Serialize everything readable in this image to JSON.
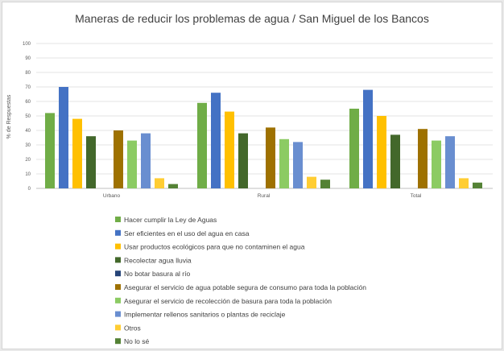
{
  "chart_data": {
    "type": "bar",
    "title": "Maneras de reducir los problemas de agua / San Miguel de los Bancos",
    "xlabel": "",
    "ylabel": "% de Respuestas",
    "ylim": [
      0,
      100
    ],
    "yticks": [
      0,
      10,
      20,
      30,
      40,
      50,
      60,
      70,
      80,
      90,
      100
    ],
    "grid": true,
    "legend_position": "bottom",
    "categories": [
      "Urbano",
      "Rural",
      "Total"
    ],
    "series": [
      {
        "name": "Hacer cumplir la Ley de Aguas",
        "color": "#70ad47",
        "values": [
          52,
          59,
          55
        ]
      },
      {
        "name": "Ser eficientes en el uso del agua en casa",
        "color": "#4472c4",
        "values": [
          70,
          66,
          68
        ]
      },
      {
        "name": "Usar productos ecológicos para que no contaminen el agua",
        "color": "#ffc000",
        "values": [
          48,
          53,
          50
        ]
      },
      {
        "name": "Recolectar agua lluvia",
        "color": "#43682b",
        "values": [
          36,
          38,
          37
        ]
      },
      {
        "name": "No botar basura al río",
        "color": "#264478",
        "values": [
          0,
          0,
          0
        ]
      },
      {
        "name": "Asegurar el servicio de agua potable segura de consumo para toda la población",
        "color": "#9e7100",
        "values": [
          40,
          42,
          41
        ]
      },
      {
        "name": "Asegurar el servicio de recolección de basura para toda la población",
        "color": "#8ccb63",
        "values": [
          33,
          34,
          33
        ]
      },
      {
        "name": "Implementar rellenos sanitarios o plantas de reciclaje",
        "color": "#698ed0",
        "values": [
          38,
          32,
          36
        ]
      },
      {
        "name": "Otros",
        "color": "#ffcd33",
        "values": [
          7,
          8,
          7
        ]
      },
      {
        "name": "No lo sé",
        "color": "#548235",
        "values": [
          3,
          6,
          4
        ]
      }
    ]
  }
}
